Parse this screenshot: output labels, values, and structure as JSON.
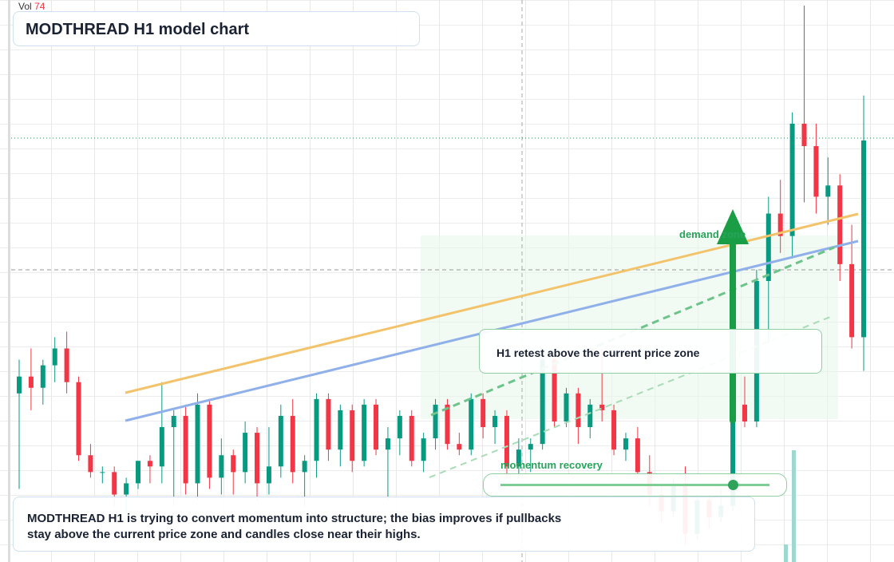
{
  "chart_data": {
    "type": "candlestick",
    "title": "MODTHREAD H1 model chart",
    "volume_label": "Vol",
    "volume_value": 74,
    "ylim": [
      0,
      100
    ],
    "up_color": "#089981",
    "down_color": "#f23645",
    "open": [
      30,
      33,
      31,
      35,
      38,
      32,
      19,
      16,
      16,
      12,
      14,
      18,
      17,
      24,
      26,
      14,
      28,
      15,
      19,
      16,
      23,
      14,
      17,
      26,
      16,
      18,
      29,
      20,
      27,
      18,
      28,
      20,
      22,
      26,
      18,
      22,
      28,
      21,
      20,
      29,
      24,
      26,
      17,
      20,
      21,
      36,
      25,
      30,
      24,
      28,
      27,
      20,
      22,
      16,
      12,
      9,
      14,
      5,
      11,
      8,
      10,
      28,
      25,
      50,
      62,
      58,
      78,
      74,
      65,
      67,
      53,
      40
    ],
    "high": [
      36,
      38,
      36,
      40,
      41,
      33,
      21,
      17,
      17,
      15,
      18,
      19,
      32,
      27,
      28,
      30,
      29,
      22,
      20,
      25,
      24,
      24,
      28,
      29,
      19,
      30,
      30,
      28,
      28,
      29,
      29,
      24,
      27,
      27,
      23,
      29,
      29,
      23,
      30,
      30,
      27,
      27,
      22,
      22,
      38,
      37,
      31,
      31,
      29,
      38,
      28,
      23,
      24,
      19,
      14,
      15,
      17,
      12,
      12,
      13,
      29,
      33,
      52,
      65,
      68,
      80,
      99,
      78,
      72,
      69,
      60,
      83
    ],
    "low": [
      13,
      27,
      28,
      32,
      30,
      18,
      15,
      14,
      10,
      8,
      13,
      14,
      14,
      10,
      12,
      11,
      13,
      12,
      12,
      14,
      11,
      12,
      15,
      14,
      10,
      15,
      18,
      17,
      16,
      17,
      19,
      11,
      19,
      17,
      16,
      20,
      20,
      19,
      19,
      22,
      21,
      15,
      15,
      16,
      20,
      24,
      24,
      21,
      22,
      25,
      19,
      18,
      15,
      10,
      7,
      8,
      3,
      4,
      6,
      7,
      9,
      24,
      24,
      39,
      55,
      54,
      64,
      62,
      60,
      50,
      38,
      34
    ],
    "close": [
      33,
      31,
      35,
      38,
      32,
      19,
      16,
      16,
      12,
      14,
      18,
      17,
      24,
      26,
      14,
      28,
      15,
      19,
      16,
      23,
      14,
      17,
      26,
      16,
      18,
      29,
      20,
      27,
      18,
      28,
      20,
      22,
      26,
      18,
      22,
      28,
      21,
      20,
      29,
      24,
      26,
      17,
      20,
      21,
      36,
      25,
      30,
      24,
      28,
      27,
      20,
      22,
      16,
      12,
      9,
      14,
      5,
      11,
      8,
      10,
      28,
      25,
      50,
      62,
      58,
      78,
      74,
      65,
      67,
      53,
      40,
      75
    ],
    "annotations": {
      "zone": "demand zone",
      "retest": "H1 retest above the current price zone",
      "momentum": "momentum recovery"
    },
    "note": [
      "MODTHREAD H1 is trying to convert momentum into structure; the bias improves if pullbacks",
      "stay above the current price zone and candles close near their highs."
    ]
  }
}
